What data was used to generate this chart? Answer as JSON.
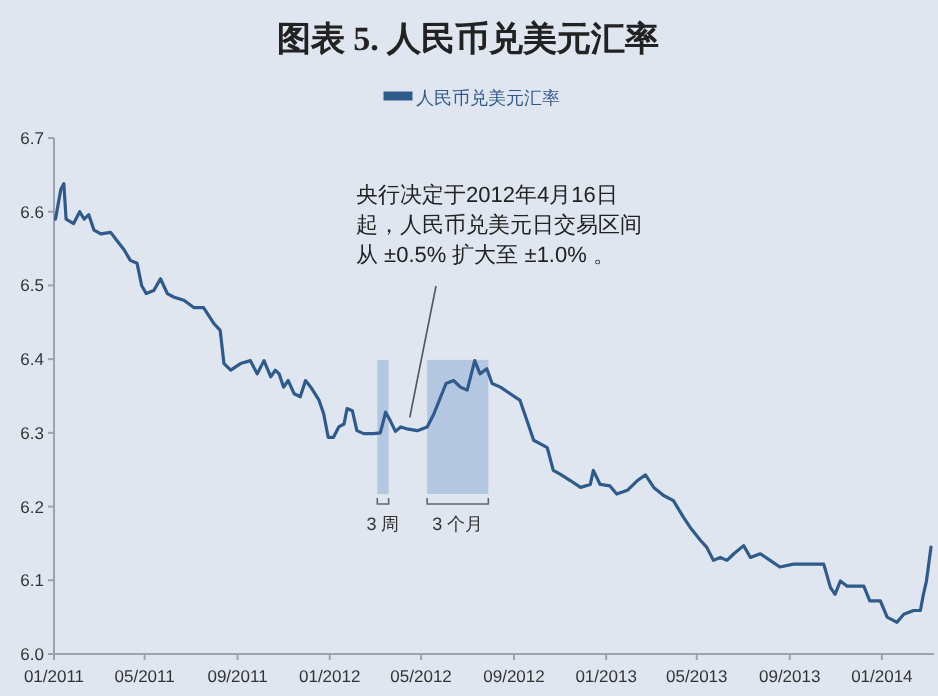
{
  "chart_data": {
    "type": "line",
    "title": "图表 5. 人民币兑美元汇率",
    "x": [
      "2011-01-03",
      "2011-01-10",
      "2011-01-14",
      "2011-01-17",
      "2011-01-27",
      "2011-02-04",
      "2011-02-10",
      "2011-02-16",
      "2011-02-23",
      "2011-03-04",
      "2011-03-17",
      "2011-03-26",
      "2011-04-04",
      "2011-04-12",
      "2011-04-21",
      "2011-04-27",
      "2011-05-03",
      "2011-05-13",
      "2011-05-22",
      "2011-05-31",
      "2011-06-09",
      "2011-06-22",
      "2011-07-05",
      "2011-07-18",
      "2011-08-01",
      "2011-08-09",
      "2011-08-14",
      "2011-08-23",
      "2011-09-05",
      "2011-09-18",
      "2011-09-27",
      "2011-10-06",
      "2011-10-15",
      "2011-10-21",
      "2011-10-26",
      "2011-11-01",
      "2011-11-07",
      "2011-11-15",
      "2011-11-23",
      "2011-11-30",
      "2011-12-07",
      "2011-12-18",
      "2011-12-24",
      "2011-12-30",
      "2012-01-06",
      "2012-01-13",
      "2012-01-20",
      "2012-01-24",
      "2012-01-31",
      "2012-02-06",
      "2012-02-15",
      "2012-02-28",
      "2012-03-08",
      "2012-03-15",
      "2012-03-21",
      "2012-03-28",
      "2012-04-04",
      "2012-04-14",
      "2012-04-26",
      "2012-05-09",
      "2012-05-18",
      "2012-05-27",
      "2012-06-03",
      "2012-06-13",
      "2012-06-22",
      "2012-07-01",
      "2012-07-11",
      "2012-07-18",
      "2012-07-27",
      "2012-08-03",
      "2012-08-14",
      "2012-08-27",
      "2012-09-09",
      "2012-09-18",
      "2012-09-27",
      "2012-10-06",
      "2012-10-15",
      "2012-10-23",
      "2012-11-01",
      "2012-11-15",
      "2012-11-28",
      "2012-12-11",
      "2012-12-15",
      "2012-12-24",
      "2013-01-06",
      "2013-01-15",
      "2013-01-29",
      "2013-02-11",
      "2013-02-22",
      "2013-03-05",
      "2013-03-18",
      "2013-03-31",
      "2013-04-13",
      "2013-04-22",
      "2013-05-06",
      "2013-05-14",
      "2013-05-23",
      "2013-06-01",
      "2013-06-10",
      "2013-06-19",
      "2013-07-02",
      "2013-07-11",
      "2013-07-24",
      "2013-08-06",
      "2013-08-19",
      "2013-09-06",
      "2013-09-24",
      "2013-10-16",
      "2013-10-25",
      "2013-10-31",
      "2013-11-07",
      "2013-11-16",
      "2013-12-08",
      "2013-12-16",
      "2013-12-30",
      "2014-01-08",
      "2014-01-21",
      "2014-01-30",
      "2014-02-12",
      "2014-02-21",
      "2014-02-25",
      "2014-03-01",
      "2014-03-07"
    ],
    "series": [
      {
        "name": "人民币兑美元汇率",
        "color": "#2e5a8c",
        "values": [
          6.59,
          6.63,
          6.638,
          6.59,
          6.584,
          6.6,
          6.59,
          6.596,
          6.575,
          6.57,
          6.572,
          6.56,
          6.548,
          6.534,
          6.53,
          6.5,
          6.489,
          6.493,
          6.509,
          6.489,
          6.484,
          6.48,
          6.47,
          6.47,
          6.448,
          6.439,
          6.394,
          6.385,
          6.394,
          6.398,
          6.38,
          6.398,
          6.376,
          6.385,
          6.38,
          6.362,
          6.371,
          6.353,
          6.349,
          6.371,
          6.362,
          6.344,
          6.326,
          6.294,
          6.294,
          6.308,
          6.312,
          6.333,
          6.33,
          6.303,
          6.299,
          6.299,
          6.3,
          6.328,
          6.317,
          6.302,
          6.308,
          6.305,
          6.303,
          6.308,
          6.326,
          6.349,
          6.367,
          6.371,
          6.362,
          6.358,
          6.398,
          6.38,
          6.387,
          6.367,
          6.362,
          6.353,
          6.344,
          6.317,
          6.29,
          6.285,
          6.28,
          6.249,
          6.244,
          6.235,
          6.226,
          6.23,
          6.249,
          6.23,
          6.228,
          6.217,
          6.222,
          6.235,
          6.243,
          6.226,
          6.215,
          6.208,
          6.186,
          6.172,
          6.154,
          6.145,
          6.127,
          6.131,
          6.127,
          6.136,
          6.147,
          6.131,
          6.136,
          6.127,
          6.118,
          6.122,
          6.122,
          6.122,
          6.09,
          6.081,
          6.099,
          6.092,
          6.092,
          6.072,
          6.072,
          6.05,
          6.043,
          6.054,
          6.059,
          6.059,
          6.081,
          6.099,
          6.145
        ]
      }
    ],
    "xlim": [
      "2011-01-01",
      "2014-03-11"
    ],
    "xticks": [
      {
        "value": "2011-01-01",
        "label": "01/2011"
      },
      {
        "value": "2011-05-01",
        "label": "05/2011"
      },
      {
        "value": "2011-09-01",
        "label": "09/2011"
      },
      {
        "value": "2012-01-01",
        "label": "01/2012"
      },
      {
        "value": "2012-05-01",
        "label": "05/2012"
      },
      {
        "value": "2012-09-01",
        "label": "09/2012"
      },
      {
        "value": "2013-01-01",
        "label": "01/2013"
      },
      {
        "value": "2013-05-01",
        "label": "05/2013"
      },
      {
        "value": "2013-09-01",
        "label": "09/2013"
      },
      {
        "value": "2014-01-01",
        "label": "01/2014"
      }
    ],
    "ylim": [
      6.0,
      6.7
    ],
    "yticks": [
      {
        "value": 6.0,
        "label": "6.0"
      },
      6.1,
      6.2,
      6.3,
      6.4,
      6.5,
      6.6,
      6.7
    ],
    "bands": [
      {
        "axis": "x",
        "from": "2012-03-04",
        "to": "2012-03-19",
        "label": "3 周",
        "color": "#b4c7e0"
      },
      {
        "axis": "x",
        "from": "2012-05-09",
        "to": "2012-07-29",
        "label": "3 个月",
        "color": "#b4c7e0"
      }
    ],
    "annotations": [
      {
        "text": "央行决定于2012年4月16日起，人民币兑美元日交易区间从 ±0.5% 扩大至 ±1.0% 。",
        "x": "2012-04-16",
        "y": 6.31
      }
    ],
    "legend": "top",
    "grid": false,
    "marker": "none",
    "line_style": "solid"
  }
}
